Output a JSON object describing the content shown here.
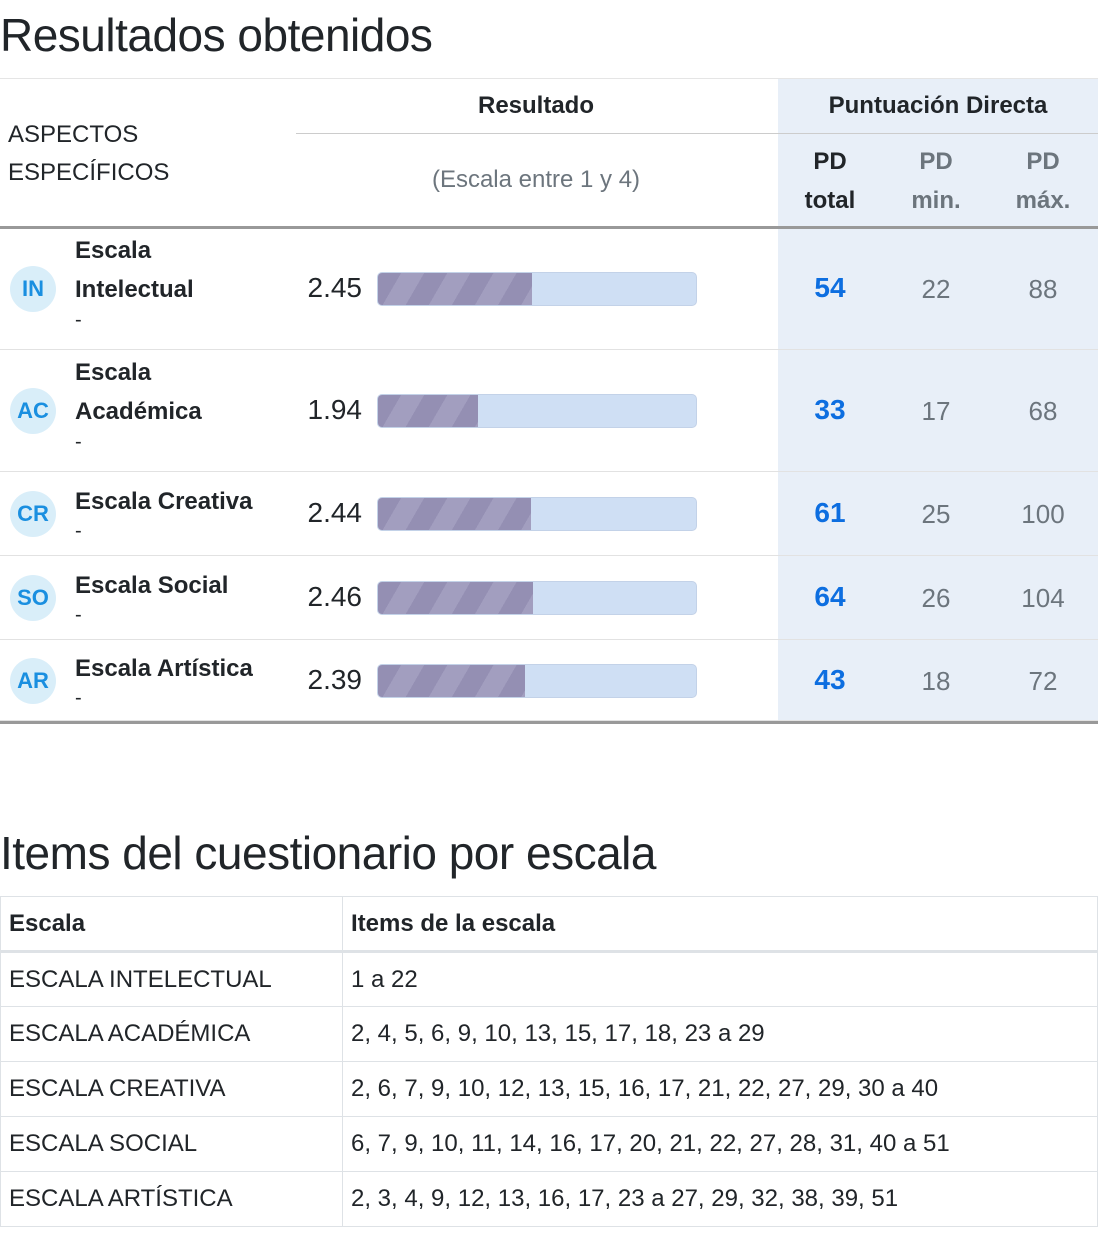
{
  "results": {
    "title": "Resultados obtenidos",
    "header": {
      "aspects": "ASPECTOS ESPECÍFICOS",
      "result": "Resultado",
      "scale_note": "(Escala entre 1 y 4)",
      "pd": "Puntuación Directa",
      "pd_total": "PD total",
      "pd_min": "PD min.",
      "pd_max": "PD máx."
    },
    "scale_range": [
      1,
      4
    ],
    "rows": [
      {
        "code": "IN",
        "name": "Escala Intelectual",
        "sub": "-",
        "value": "2.45",
        "pd_total": "54",
        "pd_min": "22",
        "pd_max": "88"
      },
      {
        "code": "AC",
        "name": "Escala Académica",
        "sub": "-",
        "value": "1.94",
        "pd_total": "33",
        "pd_min": "17",
        "pd_max": "68"
      },
      {
        "code": "CR",
        "name": "Escala Creativa",
        "sub": "-",
        "value": "2.44",
        "pd_total": "61",
        "pd_min": "25",
        "pd_max": "100"
      },
      {
        "code": "SO",
        "name": "Escala Social",
        "sub": "-",
        "value": "2.46",
        "pd_total": "64",
        "pd_min": "26",
        "pd_max": "104"
      },
      {
        "code": "AR",
        "name": "Escala Artística",
        "sub": "-",
        "value": "2.39",
        "pd_total": "43",
        "pd_min": "18",
        "pd_max": "72"
      }
    ]
  },
  "items": {
    "title": "Items del cuestionario por escala",
    "headers": [
      "Escala",
      "Items de la escala"
    ],
    "rows": [
      [
        "ESCALA INTELECTUAL",
        "1 a 22"
      ],
      [
        "ESCALA ACADÉMICA",
        "2, 4, 5, 6, 9, 10, 13, 15, 17, 18, 23 a 29"
      ],
      [
        "ESCALA CREATIVA",
        "2, 6, 7, 9, 10, 12, 13, 15, 16, 17, 21, 22, 27, 29, 30 a 40"
      ],
      [
        "ESCALA SOCIAL",
        "6, 7, 9, 10, 11, 14, 16, 17, 20, 21, 22, 27, 28, 31, 40 a 51"
      ],
      [
        "ESCALA ARTÍSTICA",
        "2, 3, 4, 9, 12, 13, 16, 17, 23 a 27, 29, 32, 38, 39, 51"
      ]
    ]
  }
}
